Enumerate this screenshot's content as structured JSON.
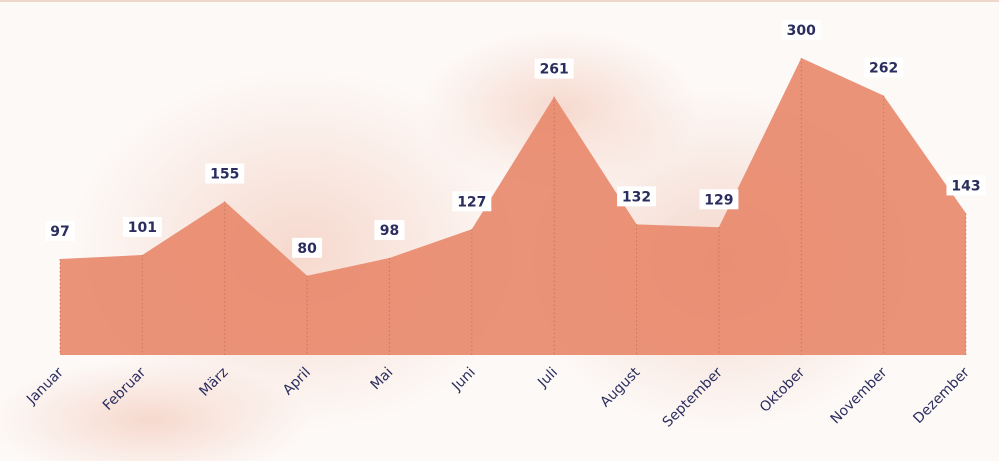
{
  "chart_data": {
    "type": "area",
    "title": "",
    "xlabel": "",
    "ylabel": "",
    "categories": [
      "Januar",
      "Februar",
      "März",
      "April",
      "Mai",
      "Juni",
      "Juli",
      "August",
      "September",
      "Oktober",
      "November",
      "Dezember"
    ],
    "values": [
      97,
      101,
      155,
      80,
      98,
      127,
      261,
      132,
      129,
      300,
      262,
      143
    ],
    "ylim": [
      0,
      300
    ],
    "grid": false,
    "legend": "none",
    "colors": {
      "fill": "#e8876a",
      "label": "#2b2d5e",
      "gridline": "#b86a55",
      "label_bg": "#ffffff"
    }
  }
}
